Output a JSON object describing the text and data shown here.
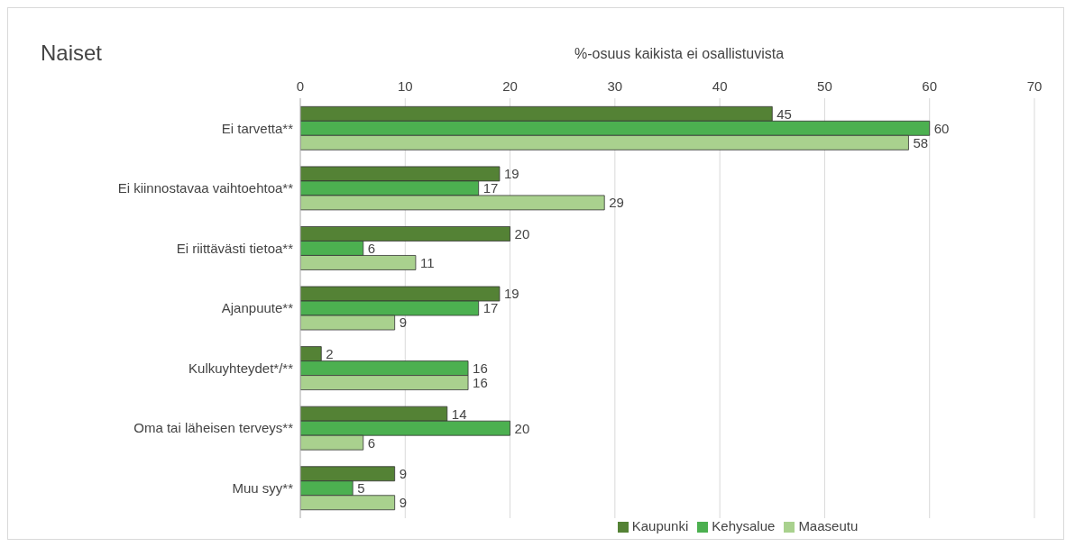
{
  "chart_data": {
    "type": "bar",
    "orientation": "horizontal",
    "title": "Naiset",
    "xlabel": "%-osuus kaikista ei osallistuvista",
    "categories": [
      "Ei tarvetta**",
      "Ei kiinnostavaa vaihtoehtoa**",
      "Ei riittävästi tietoa**",
      "Ajanpuute**",
      "Kulkuyhteydet*/**",
      "Oma tai läheisen terveys**",
      "Muu syy**"
    ],
    "series": [
      {
        "name": "Kaupunki",
        "color": "#548235",
        "values": [
          45,
          19,
          20,
          19,
          2,
          14,
          9
        ]
      },
      {
        "name": "Kehysalue",
        "color": "#4cb050",
        "values": [
          60,
          17,
          6,
          17,
          16,
          20,
          5
        ]
      },
      {
        "name": "Maaseutu",
        "color": "#a9d18e",
        "values": [
          58,
          29,
          11,
          9,
          16,
          6,
          9
        ]
      }
    ],
    "xlim": [
      0,
      70
    ],
    "xticks": [
      0,
      10,
      20,
      30,
      40,
      50,
      60,
      70
    ],
    "grid": "x",
    "legend": "bottom",
    "data_labels": true
  }
}
